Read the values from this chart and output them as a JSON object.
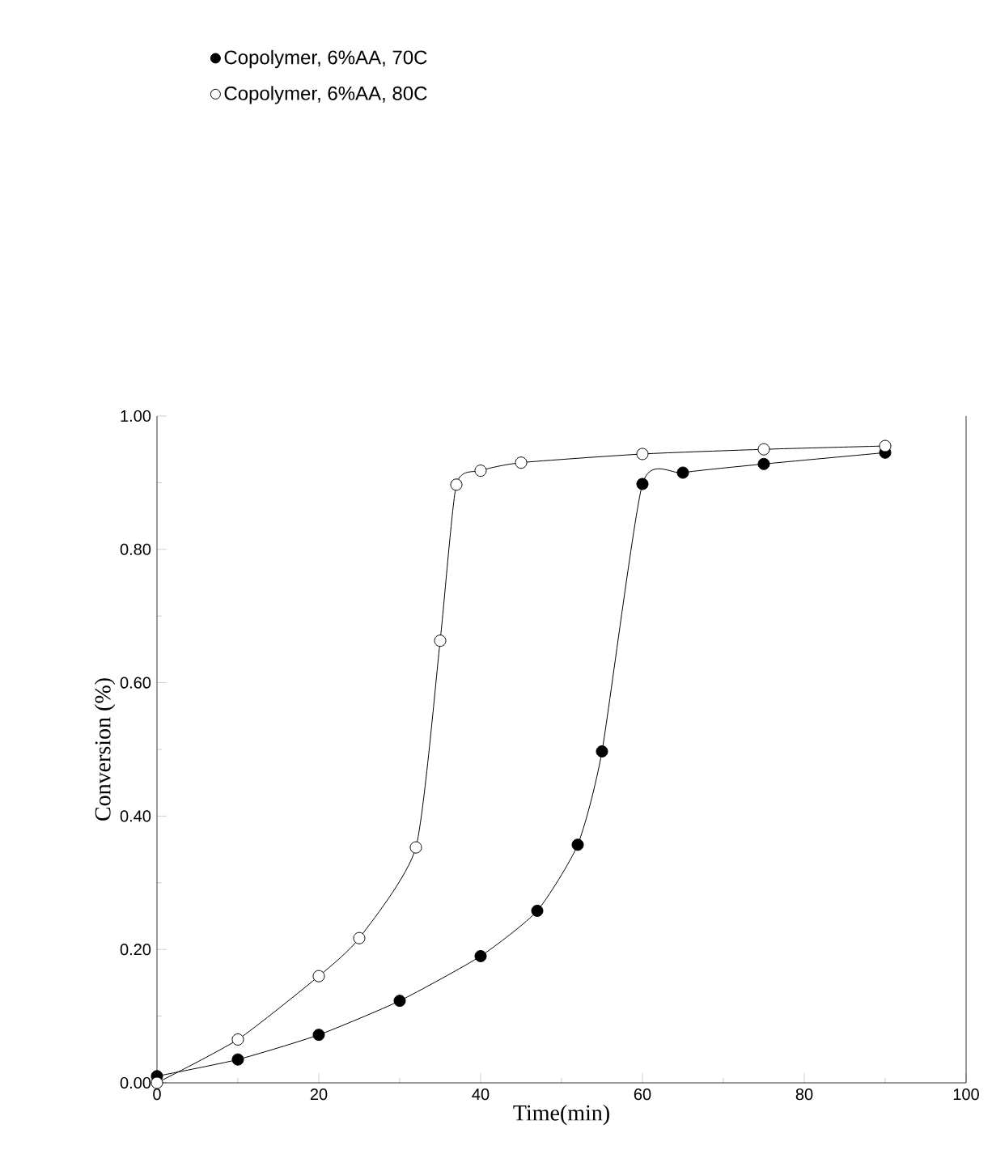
{
  "chart_data": {
    "type": "line",
    "xlabel": "Time(min)",
    "ylabel": "Conversion  (%)",
    "xlim": [
      0,
      100
    ],
    "xticks": [
      0,
      20,
      40,
      60,
      80,
      100
    ],
    "ylim": [
      0,
      1
    ],
    "yticks": [
      {
        "value": 0,
        "label": "0.00"
      },
      {
        "value": 0.2,
        "label": "0.20"
      },
      {
        "value": 0.4,
        "label": "0.40"
      },
      {
        "value": 0.6,
        "label": "0.60"
      },
      {
        "value": 0.8,
        "label": "0.80"
      },
      {
        "value": 1,
        "label": "1.00"
      }
    ],
    "series": [
      {
        "name": "Copolymer, 6%AA, 70C",
        "color": "#000000",
        "x": [
          0,
          10,
          20,
          30,
          40,
          47,
          52,
          55,
          60,
          65,
          75,
          90
        ],
        "values": [
          0.01,
          0.035,
          0.072,
          0.123,
          0.19,
          0.258,
          0.357,
          0.497,
          0.898,
          0.915,
          0.928,
          0.945
        ]
      },
      {
        "name": "Copolymer, 6%AA, 80C",
        "color": "#000000",
        "x": [
          0,
          10,
          20,
          25,
          32,
          35,
          37,
          40,
          45,
          60,
          75,
          90
        ],
        "values": [
          0,
          0.065,
          0.16,
          0.217,
          0.353,
          0.663,
          0.897,
          0.918,
          0.93,
          0.943,
          0.95,
          0.955
        ]
      }
    ],
    "marker": "circle",
    "line_style": "solid",
    "legend": "top",
    "grid": false
  }
}
